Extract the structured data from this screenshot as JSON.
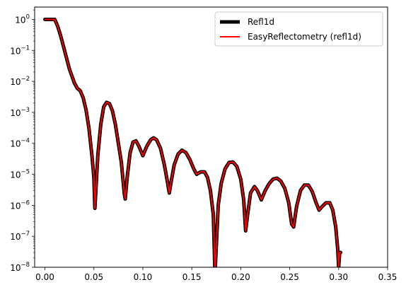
{
  "chart_data": {
    "type": "line",
    "xlim": [
      -0.0105,
      0.35
    ],
    "ylim": [
      1e-08,
      2.5
    ],
    "yscale": "log",
    "grid": false,
    "legend_position": "top-right",
    "x_ticks": [
      {
        "value": 0.0,
        "label": "0.00"
      },
      {
        "value": 0.05,
        "label": "0.05"
      },
      {
        "value": 0.1,
        "label": "0.10"
      },
      {
        "value": 0.15,
        "label": "0.15"
      },
      {
        "value": 0.2,
        "label": "0.20"
      },
      {
        "value": 0.25,
        "label": "0.25"
      },
      {
        "value": 0.3,
        "label": "0.30"
      },
      {
        "value": 0.35,
        "label": "0.35"
      }
    ],
    "y_ticks": [
      {
        "value": 1,
        "base": "10",
        "exp": "0"
      },
      {
        "value": 0.1,
        "base": "10",
        "exp": "−1"
      },
      {
        "value": 0.01,
        "base": "10",
        "exp": "−2"
      },
      {
        "value": 0.001,
        "base": "10",
        "exp": "−3"
      },
      {
        "value": 0.0001,
        "base": "10",
        "exp": "−4"
      },
      {
        "value": 1e-05,
        "base": "10",
        "exp": "−5"
      },
      {
        "value": 1e-06,
        "base": "10",
        "exp": "−6"
      },
      {
        "value": 1e-07,
        "base": "10",
        "exp": "−7"
      },
      {
        "value": 1e-08,
        "base": "10",
        "exp": "−8"
      }
    ],
    "x": [
      0.0,
      0.005,
      0.01,
      0.013,
      0.016,
      0.02,
      0.025,
      0.03,
      0.033,
      0.036,
      0.039,
      0.042,
      0.045,
      0.048,
      0.05,
      0.051,
      0.052,
      0.054,
      0.057,
      0.06,
      0.063,
      0.066,
      0.069,
      0.072,
      0.075,
      0.078,
      0.081,
      0.082,
      0.084,
      0.087,
      0.09,
      0.093,
      0.096,
      0.1,
      0.104,
      0.108,
      0.111,
      0.114,
      0.118,
      0.122,
      0.125,
      0.127,
      0.129,
      0.132,
      0.136,
      0.14,
      0.144,
      0.148,
      0.152,
      0.155,
      0.159,
      0.163,
      0.166,
      0.169,
      0.172,
      0.1735,
      0.174,
      0.177,
      0.18,
      0.184,
      0.188,
      0.192,
      0.196,
      0.2,
      0.203,
      0.205,
      0.207,
      0.21,
      0.214,
      0.217,
      0.221,
      0.225,
      0.229,
      0.233,
      0.237,
      0.241,
      0.245,
      0.249,
      0.252,
      0.254,
      0.257,
      0.261,
      0.265,
      0.269,
      0.273,
      0.277,
      0.28,
      0.283,
      0.287,
      0.291,
      0.294,
      0.297,
      0.299,
      0.3,
      0.301,
      0.302
    ],
    "series": [
      {
        "name": "Refl1d",
        "color": "#000000",
        "values": [
          1.0,
          1.0,
          1.0,
          0.6,
          0.3,
          0.1,
          0.025,
          0.009,
          0.006,
          0.005,
          0.003,
          0.0012,
          0.0003,
          4e-05,
          8e-06,
          8e-07,
          3e-06,
          4e-05,
          0.0004,
          0.0015,
          0.0021,
          0.0019,
          0.0011,
          0.0004,
          0.0001,
          2.5e-05,
          2.5e-06,
          1.6e-06,
          8e-06,
          5e-05,
          0.00011,
          0.00012,
          8e-05,
          4e-05,
          8e-05,
          0.00013,
          0.00015,
          0.00013,
          7e-05,
          2e-05,
          6e-06,
          2.5e-06,
          6e-06,
          2e-05,
          4.5e-05,
          6e-05,
          5e-05,
          3e-05,
          1.5e-05,
          1e-05,
          1.2e-05,
          1.2e-05,
          8e-06,
          3e-06,
          5e-07,
          1e-08,
          1e-08,
          1e-06,
          5e-06,
          1.5e-05,
          2.4e-05,
          2.5e-05,
          1.8e-05,
          7e-06,
          1.5e-06,
          1.5e-07,
          5e-07,
          2.5e-06,
          4e-06,
          3e-06,
          1.5e-06,
          3e-06,
          5e-06,
          7e-06,
          7.5e-06,
          6e-06,
          3.5e-06,
          1.2e-06,
          2.5e-07,
          2e-07,
          9e-07,
          3e-06,
          4.5e-06,
          4.5e-06,
          2.8e-06,
          1.2e-06,
          7e-07,
          9e-07,
          1.2e-06,
          1.2e-06,
          7e-07,
          2e-07,
          4e-08,
          1e-08,
          3e-08,
          3e-08
        ]
      },
      {
        "name": "EasyReflectometry (refl1d)",
        "color": "#ff0000",
        "values": [
          1.0,
          1.0,
          1.0,
          0.6,
          0.3,
          0.1,
          0.025,
          0.009,
          0.006,
          0.005,
          0.003,
          0.0012,
          0.0003,
          4e-05,
          8e-06,
          8e-07,
          3e-06,
          4e-05,
          0.0004,
          0.0015,
          0.0021,
          0.0019,
          0.0011,
          0.0004,
          0.0001,
          2.5e-05,
          2.5e-06,
          1.6e-06,
          8e-06,
          5e-05,
          0.00011,
          0.00012,
          8e-05,
          4e-05,
          8e-05,
          0.00013,
          0.00015,
          0.00013,
          7e-05,
          2e-05,
          6e-06,
          2.5e-06,
          6e-06,
          2e-05,
          4.5e-05,
          6e-05,
          5e-05,
          3e-05,
          1.5e-05,
          1e-05,
          1.2e-05,
          1.2e-05,
          8e-06,
          3e-06,
          5e-07,
          1e-08,
          1e-08,
          1e-06,
          5e-06,
          1.5e-05,
          2.4e-05,
          2.5e-05,
          1.8e-05,
          7e-06,
          1.5e-06,
          1.5e-07,
          5e-07,
          2.5e-06,
          4e-06,
          3e-06,
          1.5e-06,
          3e-06,
          5e-06,
          7e-06,
          7.5e-06,
          6e-06,
          3.5e-06,
          1.2e-06,
          2.5e-07,
          2e-07,
          9e-07,
          3e-06,
          4.5e-06,
          4.5e-06,
          2.8e-06,
          1.2e-06,
          7e-07,
          9e-07,
          1.2e-06,
          1.2e-06,
          7e-07,
          2e-07,
          4e-08,
          1e-08,
          3e-08,
          3e-08
        ]
      }
    ]
  }
}
